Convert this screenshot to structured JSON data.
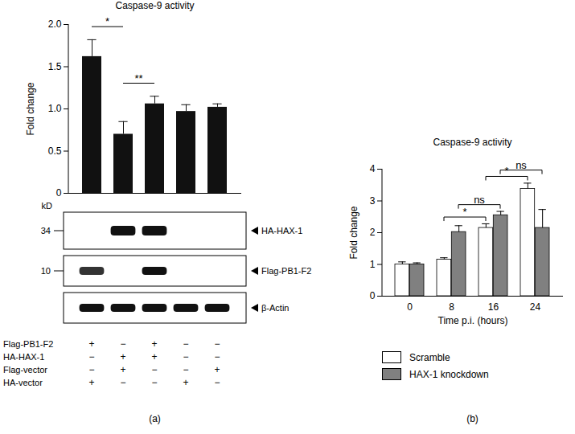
{
  "chart_data": [
    {
      "type": "bar",
      "panel_label": "(a)",
      "title": "Caspase-9 activity",
      "y_label": "Fold change",
      "categories": [
        null,
        null,
        null,
        null,
        null
      ],
      "values": [
        1.62,
        0.7,
        1.06,
        0.97,
        1.02
      ],
      "errors": [
        0.2,
        0.15,
        0.09,
        0.08,
        0.04
      ],
      "color": "#111111",
      "ylim": [
        0,
        2
      ],
      "yticks": [
        0,
        0.5,
        {
          "value": 1,
          "label": "1.0"
        },
        1.5,
        {
          "value": 2,
          "label": "2.0"
        }
      ],
      "significance": [
        {
          "from": 0,
          "to": 1,
          "label": "*"
        },
        {
          "from": 1,
          "to": 2,
          "label": "**"
        }
      ],
      "blot": {
        "unit_label": "kD",
        "rows": [
          {
            "name": "HA-HAX-1",
            "kd_marker": 34,
            "bands": [
              false,
              true,
              true,
              false,
              false
            ]
          },
          {
            "name": "Flag-PB1-F2",
            "kd_marker": 10,
            "bands": [
              true,
              false,
              true,
              false,
              false
            ]
          },
          {
            "name": "β-Actin",
            "bands": [
              true,
              true,
              true,
              true,
              true
            ]
          }
        ]
      },
      "conditions": [
        {
          "name": "Flag-PB1-F2",
          "signs": [
            "+",
            "−",
            "+",
            "−",
            "−"
          ]
        },
        {
          "name": "HA-HAX-1",
          "signs": [
            "−",
            "+",
            "+",
            "−",
            "−"
          ]
        },
        {
          "name": "Flag-vector",
          "signs": [
            "−",
            "+",
            "−",
            "−",
            "+"
          ]
        },
        {
          "name": "HA-vector",
          "signs": [
            "+",
            "−",
            "−",
            "+",
            "−"
          ]
        }
      ]
    },
    {
      "type": "bar",
      "panel_label": "(b)",
      "title": "Caspase-9 activity",
      "y_label": "Fold change",
      "x_label": "Time p.i. (hours)",
      "categories": [
        "0",
        "8",
        "16",
        "24"
      ],
      "series": [
        {
          "name": "Scramble",
          "color": "#ffffff",
          "values": [
            1.0,
            1.15,
            2.15,
            3.38
          ],
          "errors": [
            0.08,
            0.06,
            0.13,
            0.18
          ]
        },
        {
          "name": "HAX-1 knockdown",
          "color": "#808080",
          "values": [
            1.0,
            2.02,
            2.55,
            2.15
          ],
          "errors": [
            0.05,
            0.2,
            0.12,
            0.58
          ]
        }
      ],
      "ylim": [
        0,
        4
      ],
      "yticks": [
        0,
        1,
        2,
        3,
        4
      ],
      "legend": "bottom",
      "significance": [
        {
          "series": "Scramble",
          "from": "8",
          "to": "16",
          "label": "*"
        },
        {
          "series": "HAX-1 knockdown",
          "from": "8",
          "to": "16",
          "label": "ns"
        },
        {
          "series": "Scramble",
          "from": "16",
          "to": "24",
          "label": "*"
        },
        {
          "series": "HAX-1 knockdown",
          "from": "16",
          "to": "24",
          "label": "ns"
        }
      ]
    }
  ]
}
